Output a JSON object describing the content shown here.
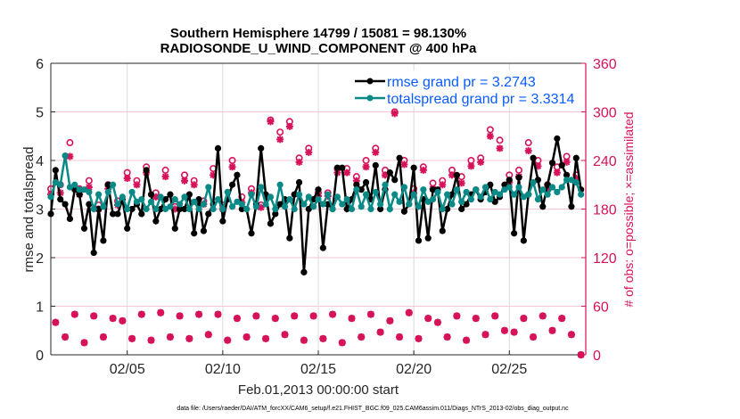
{
  "chart_data": {
    "type": "line",
    "title": [
      "Southern Hemisphere 14799 / 15081 = 98.130%",
      "RADIOSONDE_U_WIND_COMPONENT @ 400 hPa"
    ],
    "xlabel": "Feb.01,2013 00:00:00 start",
    "ylabel_left": "rmse and totalspread",
    "ylabel_right": "# of obs: o=possible; ×=assimilated",
    "footnote": "data file: /Users/raeder/DAI/ATM_forcXX/CAM6_setup/f.e21.FHIST_BGC.f09_025.CAM6assim.011/Diags_NTrS_2013-02/obs_diag_output.nc",
    "x_unit": "days since Feb.01 00Z, 6-hourly",
    "xlim": [
      0,
      28
    ],
    "x_ticks": [
      {
        "value": 4,
        "label": "02/05"
      },
      {
        "value": 9,
        "label": "02/10"
      },
      {
        "value": 14,
        "label": "02/15"
      },
      {
        "value": 19,
        "label": "02/20"
      },
      {
        "value": 24,
        "label": "02/25"
      }
    ],
    "ylim_left": [
      0,
      6
    ],
    "yticks_left": [
      "0",
      "1",
      "2",
      "3",
      "4",
      "5",
      "6"
    ],
    "ylim_right": [
      0,
      360
    ],
    "yticks_right": [
      "0",
      "60",
      "120",
      "180",
      "240",
      "300",
      "360"
    ],
    "legend": {
      "placement": "top-right",
      "entries": [
        "rmse grand pr = 3.2743",
        "totalspread grand pr = 3.3314"
      ]
    },
    "colors": {
      "rmse": "#000000",
      "spread": "#0a8a87",
      "obs": "#d6125a",
      "legend_text": "#0a5cff"
    },
    "series": [
      {
        "name": "rmse",
        "values": [
          2.9,
          3.8,
          3.2,
          3.1,
          2.8,
          3.4,
          3.3,
          2.6,
          3.1,
          2.1,
          3.0,
          2.35,
          3.5,
          2.9,
          2.9,
          3.2,
          2.6,
          3.0,
          3.1,
          2.9,
          3.8,
          3.3,
          2.75,
          3.0,
          3.2,
          3.3,
          2.6,
          3.0,
          3.0,
          3.3,
          2.5,
          3.2,
          2.55,
          2.9,
          3.1,
          4.25,
          2.75,
          3.2,
          3.5,
          3.7,
          3.0,
          3.0,
          2.5,
          3.1,
          4.25,
          3.3,
          2.7,
          2.9,
          3.1,
          3.2,
          2.4,
          3.3,
          3.55,
          1.7,
          3.0,
          3.2,
          3.4,
          2.2,
          3.1,
          3.0,
          3.85,
          3.85,
          3.0,
          3.2,
          3.5,
          3.4,
          3.55,
          3.2,
          3.9,
          3.0,
          3.4,
          3.75,
          3.6,
          4.05,
          2.95,
          3.1,
          3.85,
          2.35,
          3.2,
          2.4,
          3.4,
          3.4,
          2.55,
          3.0,
          3.3,
          3.7,
          3.0,
          3.1,
          3.3,
          3.4,
          3.2,
          3.35,
          3.5,
          3.15,
          3.25,
          3.5,
          3.6,
          2.5,
          3.65,
          2.35,
          3.3,
          4.05,
          3.6,
          3.05,
          3.5,
          3.95,
          4.45,
          3.9,
          3.7,
          3.05,
          4.05,
          3.4
        ]
      },
      {
        "name": "totalspread",
        "values": [
          3.25,
          3.55,
          3.5,
          4.1,
          3.45,
          3.5,
          3.4,
          3.4,
          3.35,
          3.0,
          3.3,
          3.05,
          3.35,
          3.5,
          3.1,
          3.25,
          3.0,
          3.35,
          3.15,
          3.2,
          3.0,
          3.15,
          3.0,
          3.25,
          3.0,
          3.05,
          3.2,
          3.1,
          3.25,
          3.0,
          3.15,
          3.0,
          3.1,
          3.45,
          3.0,
          3.2,
          3.0,
          3.35,
          3.05,
          3.15,
          3.1,
          3.0,
          3.3,
          3.05,
          3.45,
          3.1,
          3.25,
          3.0,
          3.5,
          3.05,
          3.2,
          3.0,
          3.3,
          3.1,
          3.25,
          3.05,
          3.2,
          3.1,
          3.3,
          3.0,
          3.25,
          3.1,
          3.2,
          3.0,
          3.4,
          3.05,
          3.3,
          3.0,
          3.35,
          3.1,
          3.5,
          3.0,
          3.3,
          3.15,
          3.45,
          3.1,
          3.3,
          3.05,
          3.4,
          3.15,
          3.2,
          3.35,
          3.0,
          3.3,
          3.1,
          3.4,
          3.15,
          3.35,
          3.2,
          3.4,
          3.25,
          3.45,
          3.2,
          3.35,
          3.3,
          3.4,
          3.45,
          3.3,
          3.45,
          3.25,
          3.3,
          3.55,
          3.2,
          3.4,
          3.3,
          3.45,
          3.35,
          3.45,
          3.6,
          3.6,
          3.55,
          3.3
        ]
      }
    ],
    "obs_counts": {
      "synoptic_00_12Z_possible": [
        205,
        210,
        262,
        205,
        215,
        185,
        210,
        190,
        225,
        215,
        232,
        200,
        228,
        183,
        222,
        215,
        190,
        230,
        185,
        240,
        195,
        205,
        185,
        290,
        275,
        288,
        243,
        255,
        200,
        200,
        230,
        230,
        220,
        240,
        255,
        228,
        300,
        240,
        205,
        232,
        212,
        215,
        228,
        220,
        240,
        243,
        278,
        265,
        222,
        228,
        262,
        240,
        210,
        232,
        245,
        222
      ],
      "synoptic_00_12Z_assimilated": [
        198,
        200,
        245,
        198,
        207,
        180,
        205,
        185,
        218,
        210,
        225,
        195,
        220,
        180,
        215,
        210,
        186,
        222,
        180,
        232,
        188,
        200,
        182,
        288,
        266,
        282,
        238,
        250,
        196,
        196,
        225,
        225,
        215,
        232,
        250,
        222,
        298,
        235,
        200,
        228,
        205,
        210,
        222,
        212,
        233,
        238,
        270,
        255,
        213,
        220,
        252,
        233,
        205,
        225,
        238,
        218
      ],
      "offhour_06_18Z_possible": [
        40,
        22,
        50,
        15,
        48,
        22,
        45,
        42,
        20,
        50,
        18,
        52,
        22,
        48,
        20,
        50,
        25,
        50,
        18,
        45,
        22,
        48,
        20,
        45,
        25,
        48,
        18,
        48,
        20,
        50,
        15,
        45,
        22,
        50,
        28,
        42,
        22,
        52,
        20,
        45,
        40,
        22,
        48,
        18,
        45,
        25,
        48,
        30,
        28,
        45,
        22,
        48,
        30,
        45,
        25,
        0
      ],
      "offhour_06_18Z_assimilated": [
        40,
        22,
        50,
        15,
        48,
        22,
        45,
        42,
        20,
        50,
        18,
        52,
        22,
        48,
        20,
        50,
        25,
        50,
        18,
        45,
        22,
        48,
        20,
        45,
        25,
        48,
        18,
        48,
        20,
        50,
        15,
        45,
        22,
        50,
        28,
        42,
        22,
        52,
        20,
        45,
        40,
        22,
        48,
        18,
        45,
        25,
        48,
        30,
        28,
        45,
        22,
        48,
        30,
        45,
        25,
        0
      ]
    }
  }
}
